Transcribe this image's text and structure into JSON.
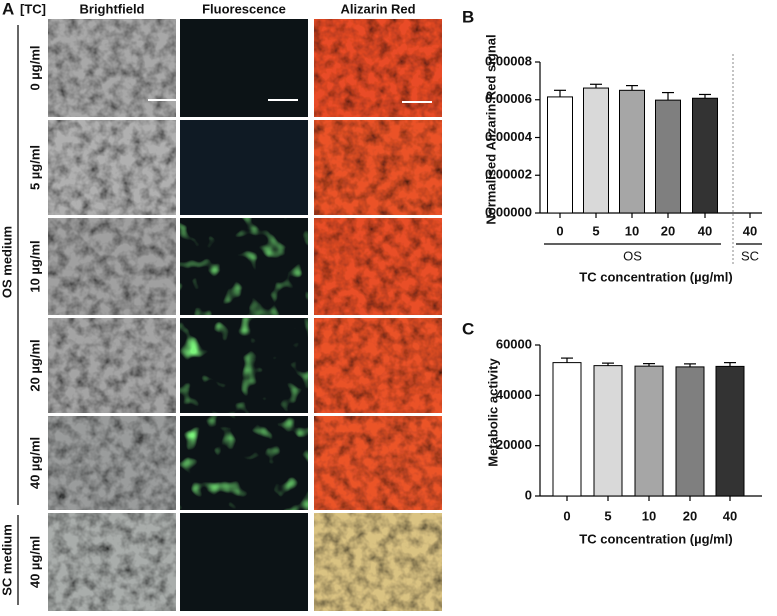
{
  "panel_a": {
    "label": "A",
    "tc_label": "[TC]",
    "columns": [
      "Brightfield",
      "Fluorescence",
      "Alizarin Red"
    ],
    "rows": [
      "0 µg/ml",
      "5 µg/ml",
      "10 µg/ml",
      "20 µg/ml",
      "40 µg/ml",
      "40 µg/ml"
    ],
    "groups": [
      "OS medium",
      "SC medium"
    ]
  },
  "chart_data": [
    {
      "type": "bar",
      "panel_label": "B",
      "ylabel": "Normalised  Alizarin Red signal",
      "xlabel": "TC concentration (µg/ml)",
      "categories": [
        "0",
        "5",
        "10",
        "20",
        "40",
        "40"
      ],
      "group_labels": [
        "OS",
        "SC"
      ],
      "values": [
        6.15e-05,
        6.62e-05,
        6.5e-05,
        5.98e-05,
        6.08e-05,
        0
      ],
      "errors": [
        3.5e-06,
        2e-06,
        2.5e-06,
        4e-06,
        2e-06,
        null
      ],
      "colors": [
        "#ffffff",
        "#d9d9d9",
        "#a6a6a6",
        "#7f7f7f",
        "#333333",
        "#333333"
      ],
      "ylim": [
        0,
        8e-05
      ],
      "yticks": [
        {
          "value": 0,
          "label": "0.00000"
        },
        {
          "value": 2e-05,
          "label": "0.00002"
        },
        {
          "value": 4e-05,
          "label": "0.00004"
        },
        {
          "value": 6e-05,
          "label": "0.00006"
        },
        {
          "value": 8e-05,
          "label": "0.00008"
        }
      ]
    },
    {
      "type": "bar",
      "panel_label": "C",
      "ylabel": "Metabolic activity",
      "xlabel": "TC concentration (µg/ml)",
      "categories": [
        "0",
        "5",
        "10",
        "20",
        "40"
      ],
      "values": [
        53000,
        51800,
        51600,
        51300,
        51500
      ],
      "errors": [
        1800,
        1000,
        1000,
        1200,
        1500
      ],
      "colors": [
        "#ffffff",
        "#d9d9d9",
        "#a6a6a6",
        "#7f7f7f",
        "#333333"
      ],
      "ylim": [
        0,
        60000
      ],
      "yticks": [
        0,
        20000,
        40000,
        60000
      ]
    }
  ]
}
